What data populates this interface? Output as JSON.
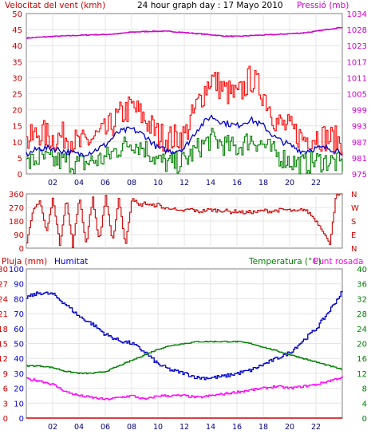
{
  "title": "24 hour graph day : 17 Mayo 2010",
  "x_ticks": [
    "02",
    "04",
    "06",
    "08",
    "10",
    "12",
    "14",
    "16",
    "18",
    "20",
    "22"
  ],
  "colors": {
    "wind": "#ff0000",
    "gust": "#ff0000",
    "wind_avg": "#0000cc",
    "wind_low": "#008000",
    "pressure": "#cc00cc",
    "direction": "#cc0000",
    "rain": "#cc0000",
    "humidity": "#0000cc",
    "temperature": "#008000",
    "dewpoint": "#ff00ff"
  },
  "chart_data": [
    {
      "type": "line",
      "name": "wind-pressure",
      "ylabel_left": "Velocitat del vent (kmh)",
      "ylabel_right": "Pressió (mb)",
      "y_left_ticks": [
        "50",
        "45",
        "40",
        "35",
        "30",
        "25",
        "20",
        "15",
        "10",
        "5",
        "0"
      ],
      "y_right_ticks": [
        "1034",
        "1028",
        "1023",
        "1017",
        "1011",
        "1005",
        "999",
        "993",
        "987",
        "981",
        "975"
      ],
      "ylim_left": [
        0,
        50
      ],
      "ylim_right": [
        975,
        1034
      ],
      "grid": true,
      "series": [
        {
          "key": "pressure",
          "axis": "right",
          "x": [
            0,
            1,
            2,
            3,
            4,
            5,
            6,
            7,
            8,
            9,
            10,
            11,
            12,
            13,
            14,
            15,
            16,
            17,
            18,
            19,
            20,
            21,
            22,
            23,
            24
          ],
          "values": [
            1025,
            1025.3,
            1025.6,
            1025.8,
            1026,
            1026.2,
            1026.3,
            1026.6,
            1027.2,
            1027.4,
            1027.5,
            1027.4,
            1027.0,
            1026.6,
            1026.2,
            1025.7,
            1025.6,
            1025.9,
            1026.1,
            1026.3,
            1026.6,
            1026.9,
            1027.5,
            1028.3,
            1029
          ]
        },
        {
          "key": "wind",
          "x": [
            0,
            1,
            2,
            3,
            4,
            5,
            6,
            7,
            8,
            9,
            10,
            11,
            12,
            13,
            14,
            15,
            16,
            17,
            18,
            19,
            20,
            21,
            22,
            23,
            24
          ],
          "values": [
            10,
            13,
            11,
            12,
            9,
            11,
            13,
            18,
            21,
            17,
            12,
            11,
            12,
            22,
            30,
            26,
            24,
            30,
            25,
            16,
            14,
            11,
            12,
            11,
            10
          ]
        },
        {
          "key": "wind_avg",
          "x": [
            0,
            1,
            2,
            3,
            4,
            5,
            6,
            7,
            8,
            9,
            10,
            11,
            12,
            13,
            14,
            15,
            16,
            17,
            18,
            19,
            20,
            21,
            22,
            23,
            24
          ],
          "values": [
            6,
            8,
            8,
            7,
            6,
            7,
            9,
            13,
            14,
            12,
            8,
            7,
            8,
            14,
            18,
            16,
            15,
            17,
            15,
            11,
            9,
            7,
            8,
            8,
            7
          ]
        },
        {
          "key": "wind_low",
          "x": [
            0,
            1,
            2,
            3,
            4,
            5,
            6,
            7,
            8,
            9,
            10,
            11,
            12,
            13,
            14,
            15,
            16,
            17,
            18,
            19,
            20,
            21,
            22,
            23,
            24
          ],
          "values": [
            3,
            5,
            4,
            4,
            3,
            4,
            5,
            8,
            10,
            8,
            4,
            3,
            4,
            8,
            11,
            9,
            8,
            11,
            9,
            6,
            4,
            3,
            4,
            4,
            3
          ]
        }
      ]
    },
    {
      "type": "line",
      "name": "wind-direction",
      "y_left_ticks": [
        "360",
        "270",
        "180",
        "90",
        "0"
      ],
      "y_right_ticks": [
        "N",
        "W",
        "S",
        "E",
        "N"
      ],
      "ylim": [
        0,
        360
      ],
      "grid": true,
      "series": [
        {
          "key": "direction",
          "x": [
            0,
            0.5,
            1,
            1.5,
            2,
            2.5,
            3,
            3.5,
            4,
            4.5,
            5,
            5.5,
            6,
            6.5,
            7,
            7.5,
            8,
            8.5,
            9,
            9.5,
            10,
            10.5,
            11,
            11.5,
            12,
            12.5,
            13,
            13.5,
            14,
            14.5,
            15,
            15.5,
            16,
            16.5,
            17,
            17.5,
            18,
            18.5,
            19,
            19.5,
            20,
            20.5,
            21,
            21.5,
            22,
            22.5,
            23,
            23.5,
            24
          ],
          "values": [
            30,
            250,
            320,
            100,
            340,
            20,
            330,
            10,
            350,
            20,
            340,
            40,
            350,
            30,
            340,
            10,
            345,
            280,
            300,
            280,
            290,
            260,
            270,
            240,
            250,
            260,
            240,
            250,
            255,
            250,
            250,
            240,
            245,
            235,
            240,
            240,
            250,
            245,
            250,
            255,
            250,
            240,
            260,
            230,
            180,
            120,
            20,
            350,
            350
          ]
        }
      ]
    },
    {
      "type": "line",
      "name": "rain-humidity-temperature",
      "ylabel_left": "Pluja (mm)",
      "ylabel_left2": "Humitat",
      "ylabel_right": "Temperatura (°C)",
      "ylabel_right2": "Punt rosada",
      "y_left_ticks": [
        "30",
        "27",
        "24",
        "21",
        "18",
        "15",
        "12",
        "9",
        "6",
        "3",
        "0"
      ],
      "y_left2_ticks": [
        "100",
        "90",
        "80",
        "70",
        "60",
        "50",
        "40",
        "30",
        "20",
        "10",
        "0"
      ],
      "y_right_ticks": [
        "40",
        "36",
        "32",
        "28",
        "24",
        "20",
        "16",
        "12",
        "8",
        "4",
        "0"
      ],
      "ylim_rain": [
        0,
        30
      ],
      "ylim_humidity": [
        0,
        100
      ],
      "ylim_temperature": [
        0,
        40
      ],
      "grid": true,
      "series": [
        {
          "key": "humidity",
          "x": [
            0,
            1,
            2,
            3,
            4,
            5,
            6,
            7,
            8,
            9,
            10,
            11,
            12,
            13,
            14,
            15,
            16,
            17,
            18,
            19,
            20,
            21,
            22,
            23,
            24
          ],
          "values": [
            81,
            84,
            83,
            76,
            68,
            63,
            56,
            52,
            50,
            44,
            36,
            32,
            30,
            27,
            27,
            28,
            30,
            32,
            36,
            40,
            44,
            52,
            60,
            72,
            85
          ]
        },
        {
          "key": "temperature",
          "x": [
            0,
            1,
            2,
            3,
            4,
            5,
            6,
            7,
            8,
            9,
            10,
            11,
            12,
            13,
            14,
            15,
            16,
            17,
            18,
            19,
            20,
            21,
            22,
            23,
            24
          ],
          "values": [
            14,
            14,
            13.5,
            12.5,
            12,
            12,
            12.5,
            14,
            15.5,
            17,
            18.5,
            19.5,
            20,
            20.5,
            20.5,
            20.5,
            20.5,
            20,
            19,
            18,
            17,
            16,
            15,
            14,
            13
          ]
        },
        {
          "key": "dewpoint",
          "x": [
            0,
            1,
            2,
            3,
            4,
            5,
            6,
            7,
            8,
            9,
            10,
            11,
            12,
            13,
            14,
            15,
            16,
            17,
            18,
            19,
            20,
            21,
            22,
            23,
            24
          ],
          "values": [
            10.5,
            10,
            9,
            7,
            6,
            5.5,
            5,
            5.5,
            6,
            5,
            6,
            6,
            6,
            5.5,
            6,
            6.5,
            7,
            7.5,
            8,
            8.5,
            8,
            8.5,
            9,
            10,
            11
          ]
        },
        {
          "key": "rain",
          "x": [
            0,
            24
          ],
          "values": [
            0,
            0
          ]
        }
      ]
    }
  ]
}
